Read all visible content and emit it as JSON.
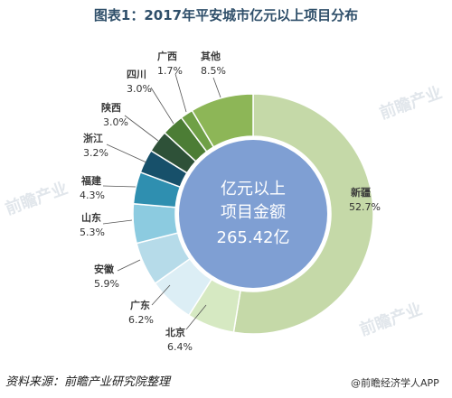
{
  "title": "图表1：2017年平安城市亿元以上项目分布",
  "center": {
    "line1": "亿元以上",
    "line2": "项目金额",
    "line3": "265.42亿"
  },
  "source": "资料来源：前瞻产业研究院整理",
  "credit": "@前瞻经济学人APP",
  "watermark_text": "前瞻产业",
  "colors": {
    "新疆": "#c5d9a8",
    "北京": "#d6e9c2",
    "广东": "#dceef5",
    "安徽": "#b6dbe9",
    "山东": "#8ccbe0",
    "福建": "#2f8fb0",
    "浙江": "#17506a",
    "陕西": "#2e5138",
    "四川": "#4c7d35",
    "广西": "#6fa046",
    "其他": "#8db657",
    "center": "#7f9fd3"
  },
  "chart_data": {
    "type": "pie",
    "title": "图表1：2017年平安城市亿元以上项目分布",
    "unit": "%",
    "slices": [
      {
        "name": "新疆",
        "value": 52.7,
        "label": "52.7%"
      },
      {
        "name": "北京",
        "value": 6.4,
        "label": "6.4%"
      },
      {
        "name": "广东",
        "value": 6.2,
        "label": "6.2%"
      },
      {
        "name": "安徽",
        "value": 5.9,
        "label": "5.9%"
      },
      {
        "name": "山东",
        "value": 5.3,
        "label": "5.3%"
      },
      {
        "name": "福建",
        "value": 4.3,
        "label": "4.3%"
      },
      {
        "name": "浙江",
        "value": 3.2,
        "label": "3.2%"
      },
      {
        "name": "陕西",
        "value": 3.0,
        "label": "3.0%"
      },
      {
        "name": "四川",
        "value": 3.0,
        "label": "3.0%"
      },
      {
        "name": "广西",
        "value": 1.7,
        "label": "1.7%"
      },
      {
        "name": "其他",
        "value": 8.5,
        "label": "8.5%"
      }
    ]
  }
}
